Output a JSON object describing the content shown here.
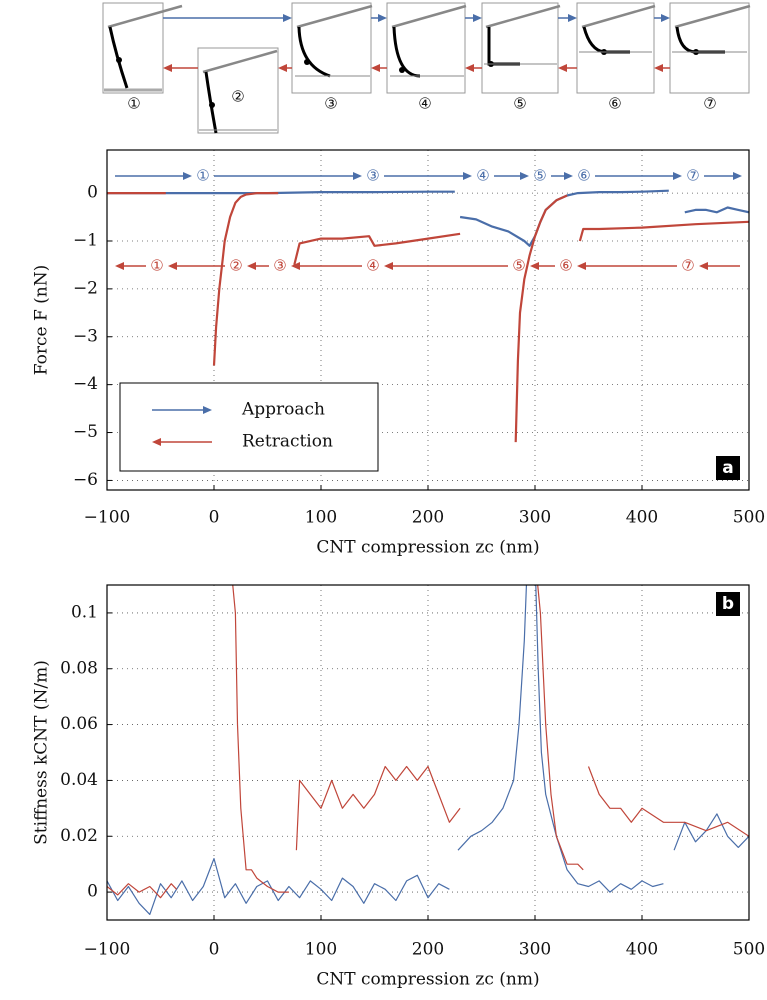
{
  "schematic": {
    "labels": [
      "①",
      "②",
      "③",
      "④",
      "⑤",
      "⑥",
      "⑦"
    ]
  },
  "chart_data": [
    {
      "type": "line",
      "panel_label": "a",
      "ylabel": "Force F (nN)",
      "xlabel": "CNT compression zc (nm)",
      "xlim": [
        -100,
        500
      ],
      "ylim": [
        -6.2,
        0.9
      ],
      "xticks": [
        {
          "value": -100,
          "label": "−100"
        },
        0,
        100,
        200,
        300,
        400,
        500
      ],
      "yticks": [
        {
          "value": -6,
          "label": "−6"
        },
        {
          "value": -5,
          "label": "−5"
        },
        {
          "value": -4,
          "label": "−4"
        },
        {
          "value": -3,
          "label": "−3"
        },
        {
          "value": -2,
          "label": "−2"
        },
        {
          "value": -1,
          "label": "−1"
        },
        0
      ],
      "grid": true,
      "legend": "lower left",
      "approach_steps": [
        "①",
        "③",
        "④",
        "⑤",
        "⑥",
        "⑦"
      ],
      "retraction_steps": [
        "①",
        "②",
        "③",
        "④",
        "⑤",
        "⑥",
        "⑦"
      ],
      "series": [
        {
          "name": "Approach",
          "color": "#4a6ea9",
          "x": [
            -100,
            -50,
            0,
            50,
            100,
            150,
            200,
            225,
            228,
            230,
            245,
            260,
            275,
            290,
            295,
            300,
            305,
            310,
            320,
            330,
            340,
            360,
            380,
            400,
            425,
            430,
            440,
            450,
            460,
            470,
            480,
            490,
            500
          ],
          "values": [
            0,
            0,
            0,
            0,
            0.02,
            0.02,
            0.03,
            0.03,
            null,
            -0.5,
            -0.55,
            -0.7,
            -0.8,
            -1.0,
            -1.1,
            -0.9,
            -0.6,
            -0.35,
            -0.15,
            -0.05,
            0,
            0.02,
            0.02,
            0.03,
            0.05,
            null,
            -0.4,
            -0.35,
            -0.35,
            -0.4,
            -0.3,
            -0.35,
            -0.4
          ]
        },
        {
          "name": "Retraction",
          "color": "#c0463a",
          "x": [
            -100,
            -70,
            -45,
            -44,
            0,
            2,
            5,
            8,
            10,
            15,
            20,
            25,
            30,
            40,
            60,
            62,
            75,
            80,
            100,
            120,
            145,
            150,
            170,
            200,
            230,
            232,
            282,
            284,
            286,
            290,
            295,
            300,
            305,
            310,
            320,
            330,
            332,
            342,
            345,
            360,
            400,
            450,
            500
          ],
          "values": [
            0,
            0,
            0,
            null,
            -3.6,
            -2.8,
            -2.0,
            -1.4,
            -1.0,
            -0.5,
            -0.2,
            -0.08,
            -0.03,
            0,
            0,
            null,
            -1.5,
            -1.05,
            -0.95,
            -0.95,
            -0.9,
            -1.1,
            -1.05,
            -0.95,
            -0.85,
            null,
            -5.2,
            -3.5,
            -2.5,
            -1.8,
            -1.3,
            -0.9,
            -0.6,
            -0.35,
            -0.15,
            -0.05,
            null,
            -1.0,
            -0.75,
            -0.75,
            -0.72,
            -0.65,
            -0.6
          ]
        }
      ]
    },
    {
      "type": "line",
      "panel_label": "b",
      "ylabel": "Stiffness kCNT (N/m)",
      "xlabel": "CNT compression zc (nm)",
      "xlim": [
        -100,
        500
      ],
      "ylim": [
        -0.01,
        0.11
      ],
      "xticks": [
        {
          "value": -100,
          "label": "−100"
        },
        0,
        100,
        200,
        300,
        400,
        500
      ],
      "yticks": [
        0,
        0.02,
        0.04,
        0.06,
        0.08,
        0.1
      ],
      "grid": true,
      "series": [
        {
          "name": "Approach",
          "color": "#4a6ea9",
          "x": [
            -100,
            -90,
            -80,
            -70,
            -60,
            -50,
            -40,
            -30,
            -20,
            -10,
            0,
            10,
            20,
            30,
            40,
            50,
            60,
            70,
            80,
            90,
            100,
            110,
            120,
            130,
            140,
            150,
            160,
            170,
            180,
            190,
            200,
            210,
            220,
            224,
            228,
            240,
            250,
            260,
            270,
            280,
            285,
            290,
            293,
            300,
            303,
            306,
            310,
            320,
            330,
            340,
            350,
            360,
            370,
            380,
            390,
            400,
            410,
            420,
            425,
            430,
            440,
            450,
            460,
            470,
            480,
            490,
            500
          ],
          "values": [
            0.004,
            -0.003,
            0.002,
            -0.004,
            -0.008,
            0.003,
            -0.002,
            0.004,
            -0.003,
            0.002,
            0.012,
            -0.002,
            0.003,
            -0.004,
            0.002,
            0.004,
            -0.003,
            0.002,
            -0.002,
            0.004,
            0.001,
            -0.003,
            0.005,
            0.002,
            -0.004,
            0.003,
            0.001,
            -0.003,
            0.004,
            0.006,
            -0.002,
            0.003,
            0.001,
            null,
            0.015,
            0.02,
            0.022,
            0.025,
            0.03,
            0.04,
            0.06,
            0.09,
            0.12,
            0.12,
            0.08,
            0.05,
            0.035,
            0.02,
            0.008,
            0.003,
            0.002,
            0.004,
            0.0,
            0.003,
            0.001,
            0.004,
            0.002,
            0.003,
            null,
            0.015,
            0.025,
            0.018,
            0.022,
            0.028,
            0.02,
            0.016,
            0.02
          ]
        },
        {
          "name": "Retraction",
          "color": "#c0463a",
          "x": [
            -100,
            -90,
            -80,
            -70,
            -60,
            -50,
            -40,
            -35,
            -30,
            15,
            20,
            22,
            25,
            30,
            35,
            40,
            50,
            60,
            70,
            75,
            77,
            80,
            90,
            100,
            110,
            120,
            130,
            140,
            150,
            160,
            170,
            180,
            190,
            200,
            210,
            220,
            230,
            290,
            300,
            305,
            310,
            315,
            320,
            330,
            340,
            345,
            347,
            350,
            360,
            370,
            380,
            390,
            400,
            420,
            440,
            460,
            480,
            500
          ],
          "values": [
            0.002,
            -0.001,
            0.003,
            0.0,
            0.002,
            -0.002,
            0.003,
            0.001,
            null,
            0.12,
            0.1,
            0.06,
            0.03,
            0.008,
            0.008,
            0.005,
            0.002,
            0.0,
            0.0,
            null,
            0.015,
            0.04,
            0.035,
            0.03,
            0.04,
            0.03,
            0.035,
            0.03,
            0.035,
            0.045,
            0.04,
            0.045,
            0.04,
            0.045,
            0.035,
            0.025,
            0.03,
            null,
            0.12,
            0.1,
            0.06,
            0.035,
            0.02,
            0.01,
            0.01,
            0.008,
            null,
            0.045,
            0.035,
            0.03,
            0.03,
            0.025,
            0.03,
            0.025,
            0.025,
            0.022,
            0.025,
            0.02
          ]
        }
      ]
    }
  ]
}
